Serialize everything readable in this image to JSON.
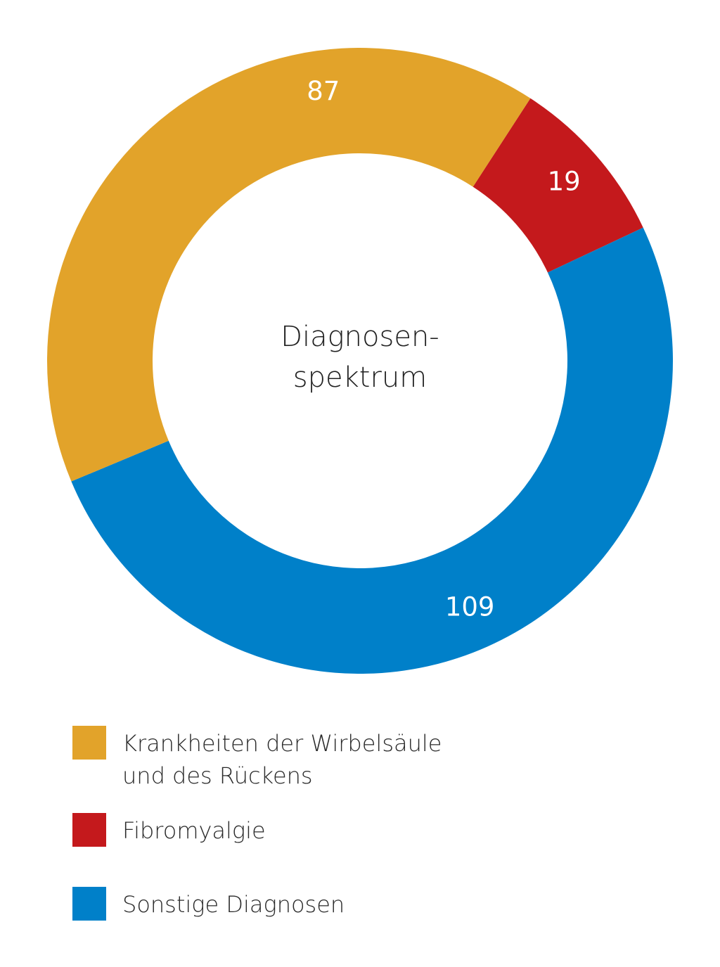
{
  "chart_data": {
    "type": "pie",
    "variant": "donut",
    "title": "Diagnosen- spektrum",
    "center_label_lines": [
      "Diagnosen-",
      "spektrum"
    ],
    "categories": [
      "Krankheiten der Wirbelsäule und des Rückens",
      "Fibromyalgie",
      "Sonstige Diagnosen"
    ],
    "values": [
      87,
      19,
      109
    ],
    "data_labels": [
      "87",
      "19",
      "109"
    ],
    "colors": [
      "#E2A32A",
      "#C4191C",
      "#0080C9"
    ],
    "legend": {
      "placement": "bottom-left",
      "entries": [
        {
          "label_lines": [
            "Krankheiten der Wirbelsäule",
            "und des Rückens"
          ],
          "color": "#E2A32A"
        },
        {
          "label_lines": [
            "Fibromyalgie"
          ],
          "color": "#C4191C"
        },
        {
          "label_lines": [
            "Sonstige Diagnosen"
          ],
          "color": "#0080C9"
        }
      ]
    }
  }
}
